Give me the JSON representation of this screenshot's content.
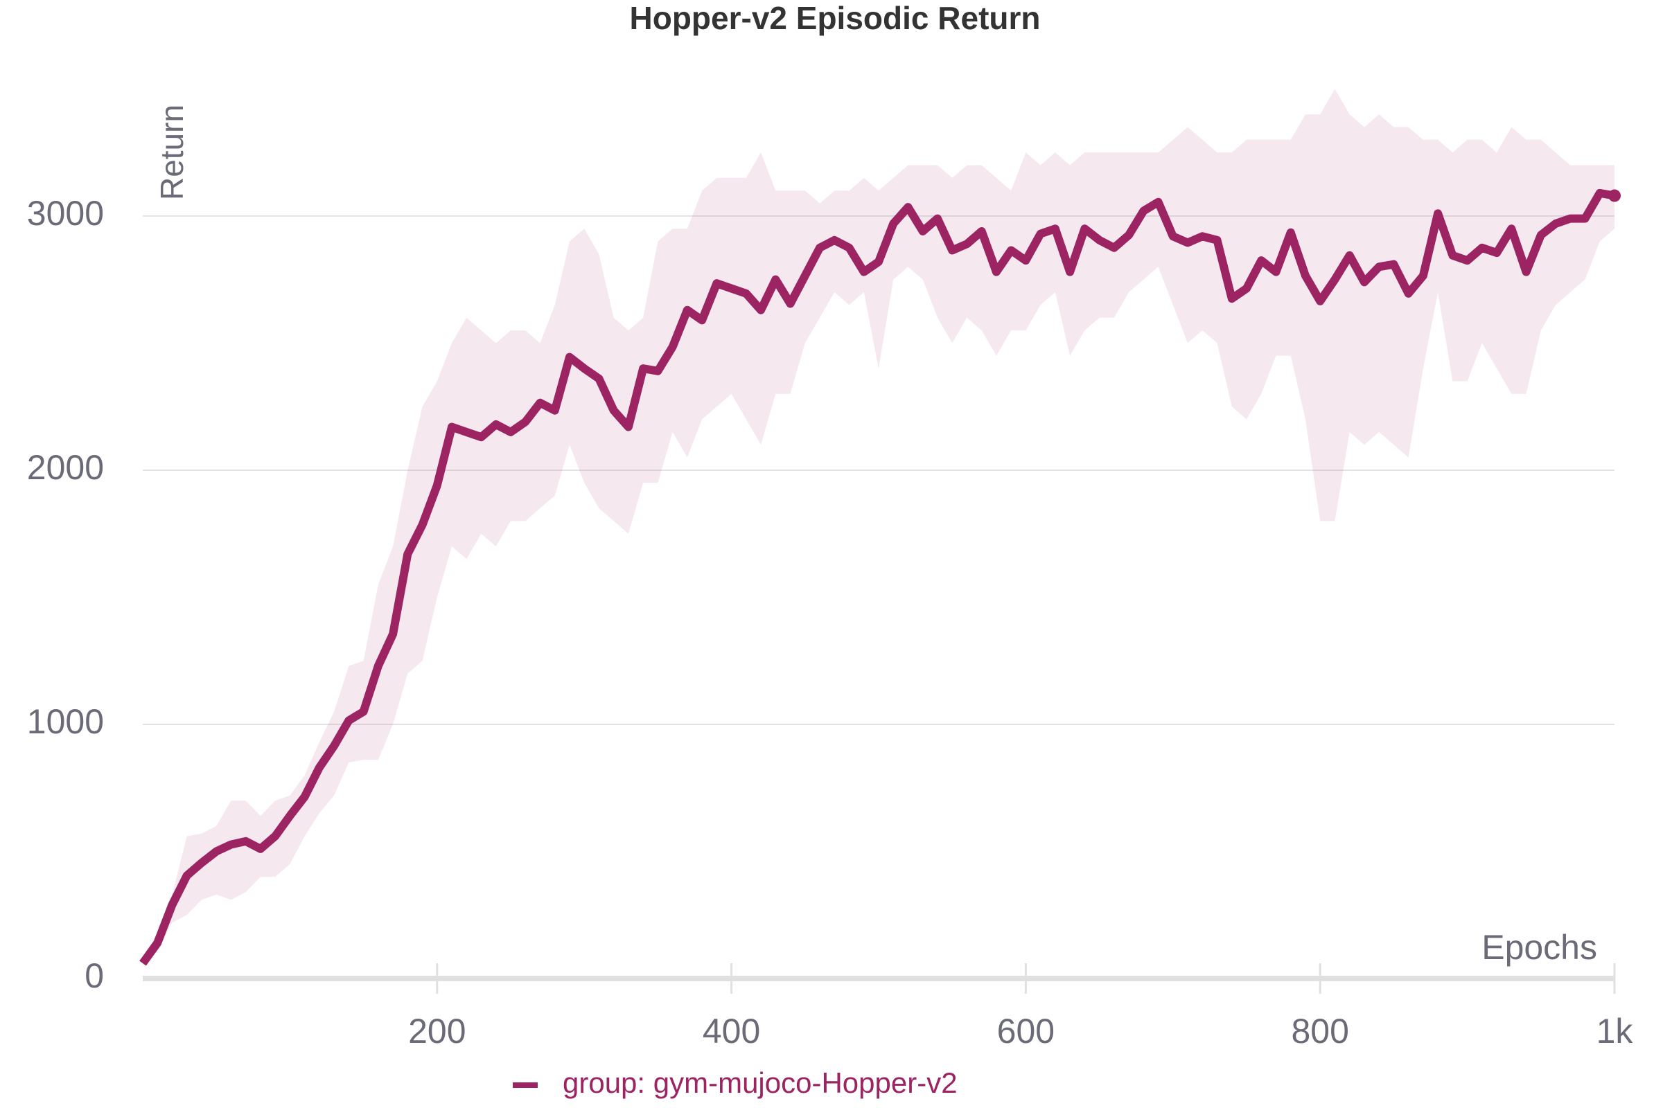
{
  "chart_data": {
    "type": "line",
    "title": "Hopper-v2 Episodic Return",
    "x_label": "Epochs",
    "y_label": "Return",
    "x": [
      0,
      10,
      20,
      30,
      40,
      50,
      60,
      70,
      80,
      90,
      100,
      110,
      120,
      130,
      140,
      150,
      160,
      170,
      180,
      190,
      200,
      210,
      220,
      230,
      240,
      250,
      260,
      270,
      280,
      290,
      300,
      310,
      320,
      330,
      340,
      350,
      360,
      370,
      380,
      390,
      400,
      410,
      420,
      430,
      440,
      450,
      460,
      470,
      480,
      490,
      500,
      510,
      520,
      530,
      540,
      550,
      560,
      570,
      580,
      590,
      600,
      610,
      620,
      630,
      640,
      650,
      660,
      670,
      680,
      690,
      700,
      710,
      720,
      730,
      740,
      750,
      760,
      770,
      780,
      790,
      800,
      810,
      820,
      830,
      840,
      850,
      860,
      870,
      880,
      890,
      900,
      910,
      920,
      930,
      940,
      950,
      960,
      970,
      980,
      990,
      1000
    ],
    "series": [
      {
        "name": "group: gym-mujoco-Hopper-v2",
        "color": "#9c2463",
        "values": [
          60,
          140,
          290,
          405,
          455,
          500,
          527,
          540,
          510,
          560,
          640,
          715,
          830,
          915,
          1015,
          1050,
          1230,
          1355,
          1670,
          1785,
          1940,
          2170,
          2150,
          2130,
          2180,
          2150,
          2190,
          2265,
          2235,
          2445,
          2400,
          2360,
          2235,
          2170,
          2400,
          2390,
          2485,
          2630,
          2590,
          2735,
          2715,
          2695,
          2630,
          2750,
          2655,
          2765,
          2875,
          2905,
          2875,
          2780,
          2820,
          2970,
          3035,
          2940,
          2990,
          2865,
          2890,
          2940,
          2780,
          2865,
          2825,
          2930,
          2950,
          2780,
          2950,
          2905,
          2875,
          2925,
          3020,
          3055,
          2920,
          2895,
          2920,
          2905,
          2675,
          2715,
          2825,
          2780,
          2935,
          2765,
          2665,
          2750,
          2845,
          2740,
          2800,
          2810,
          2695,
          2765,
          3010,
          2845,
          2825,
          2875,
          2855,
          2950,
          2780,
          2925,
          2970,
          2990,
          2990,
          3090,
          3080
        ],
        "upper": [
          80,
          180,
          330,
          560,
          570,
          600,
          700,
          700,
          640,
          700,
          720,
          800,
          930,
          1050,
          1230,
          1250,
          1550,
          1700,
          2000,
          2250,
          2350,
          2500,
          2600,
          2550,
          2500,
          2550,
          2550,
          2500,
          2650,
          2900,
          2950,
          2850,
          2600,
          2550,
          2600,
          2900,
          2950,
          2950,
          3100,
          3150,
          3150,
          3150,
          3250,
          3100,
          3100,
          3100,
          3050,
          3100,
          3100,
          3150,
          3100,
          3150,
          3200,
          3200,
          3200,
          3150,
          3200,
          3200,
          3150,
          3100,
          3250,
          3200,
          3250,
          3200,
          3250,
          3250,
          3250,
          3250,
          3250,
          3250,
          3300,
          3350,
          3300,
          3250,
          3250,
          3300,
          3300,
          3300,
          3300,
          3400,
          3400,
          3500,
          3400,
          3350,
          3400,
          3350,
          3350,
          3300,
          3300,
          3250,
          3300,
          3300,
          3250,
          3350,
          3300,
          3300,
          3250,
          3200,
          3200,
          3200,
          3200
        ],
        "lower": [
          50,
          110,
          220,
          250,
          310,
          330,
          310,
          340,
          400,
          400,
          450,
          560,
          650,
          720,
          850,
          860,
          860,
          1000,
          1200,
          1250,
          1500,
          1700,
          1650,
          1750,
          1700,
          1800,
          1800,
          1850,
          1900,
          2100,
          1950,
          1850,
          1800,
          1750,
          1950,
          1950,
          2150,
          2050,
          2200,
          2250,
          2300,
          2200,
          2100,
          2300,
          2300,
          2500,
          2600,
          2700,
          2650,
          2700,
          2400,
          2750,
          2800,
          2750,
          2600,
          2500,
          2600,
          2550,
          2450,
          2550,
          2550,
          2650,
          2700,
          2450,
          2550,
          2600,
          2600,
          2700,
          2750,
          2800,
          2650,
          2500,
          2550,
          2500,
          2250,
          2200,
          2300,
          2450,
          2450,
          2200,
          1800,
          1800,
          2150,
          2100,
          2150,
          2100,
          2050,
          2400,
          2700,
          2350,
          2350,
          2500,
          2400,
          2300,
          2300,
          2550,
          2650,
          2700,
          2750,
          2900,
          2950
        ]
      }
    ],
    "xlim": [
      0,
      1000
    ],
    "xticks": [
      200,
      400,
      600,
      800,
      {
        "value": 1000,
        "label": "1k"
      }
    ],
    "ylim": [
      0,
      3700
    ],
    "yticks": [
      0,
      1000,
      2000,
      3000
    ],
    "grid": true
  }
}
